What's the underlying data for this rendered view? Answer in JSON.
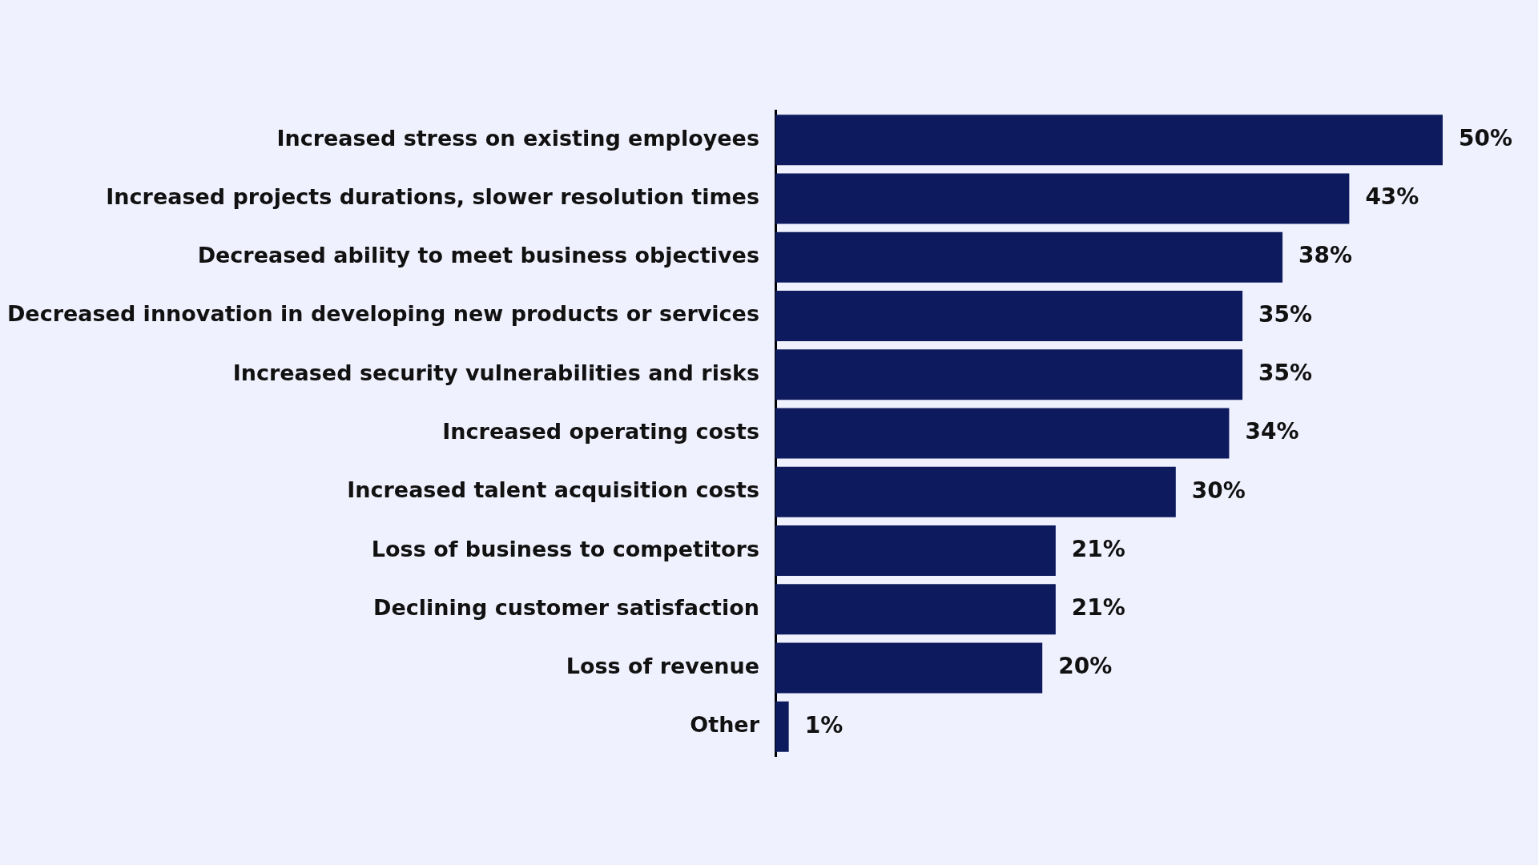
{
  "chart_data": {
    "type": "bar",
    "orientation": "horizontal",
    "categories": [
      "Increased stress on existing employees",
      "Increased projects durations, slower resolution times",
      "Decreased ability to meet business objectives",
      "Decreased innovation in developing new products or services",
      "Increased security vulnerabilities and risks",
      "Increased operating costs",
      "Increased talent acquisition costs",
      "Loss of business to competitors",
      "Declining customer satisfaction",
      "Loss of revenue",
      "Other"
    ],
    "values": [
      50,
      43,
      38,
      35,
      35,
      34,
      30,
      21,
      21,
      20,
      1
    ],
    "value_labels": [
      "50%",
      "43%",
      "38%",
      "35%",
      "35%",
      "34%",
      "30%",
      "21%",
      "21%",
      "20%",
      "1%"
    ],
    "color": "#0d1b5e"
  }
}
